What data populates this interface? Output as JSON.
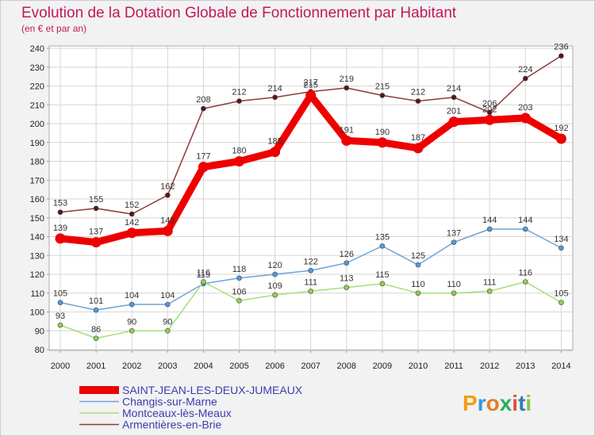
{
  "chart_data": {
    "type": "line",
    "title": "Evolution de la Dotation Globale de Fonctionnement par Habitant",
    "subtitle": "(en € et par an)",
    "xlabel": "",
    "ylabel": "",
    "ylim": [
      80,
      240
    ],
    "y_ticks": [
      80,
      90,
      100,
      110,
      120,
      130,
      140,
      150,
      160,
      170,
      180,
      190,
      200,
      210,
      220,
      230,
      240
    ],
    "grid": true,
    "categories": [
      "2000",
      "2001",
      "2002",
      "2003",
      "2004",
      "2005",
      "2006",
      "2007",
      "2008",
      "2009",
      "2010",
      "2011",
      "2012",
      "2013",
      "2014"
    ],
    "series": [
      {
        "name": "SAINT-JEAN-LES-DEUX-JUMEAUX",
        "color": "#ee0000",
        "marker": "#ee0000",
        "emphasis": true,
        "values": [
          139,
          137,
          142,
          143,
          177,
          180,
          185,
          215,
          191,
          190,
          187,
          201,
          202,
          203,
          192
        ]
      },
      {
        "name": "Changis-sur-Marne",
        "color": "#6ea3d6",
        "marker": "#4f9be0",
        "values": [
          105,
          101,
          104,
          104,
          115,
          118,
          120,
          122,
          126,
          135,
          125,
          137,
          144,
          144,
          134
        ]
      },
      {
        "name": "Montceaux-lès-Meaux",
        "color": "#a6de7a",
        "marker": "#8fd14f",
        "values": [
          93,
          86,
          90,
          90,
          116,
          106,
          109,
          111,
          113,
          115,
          110,
          110,
          111,
          116,
          105
        ]
      },
      {
        "name": "Armentières-en-Brie",
        "color": "#8b3a3a",
        "marker": "#5c1515",
        "values": [
          153,
          155,
          152,
          162,
          208,
          212,
          214,
          217,
          219,
          215,
          212,
          214,
          206,
          224,
          236
        ]
      }
    ]
  },
  "watermark": {
    "letters": [
      "P",
      "r",
      "o",
      "x",
      "i",
      "t",
      "i"
    ],
    "colors": [
      "#f39c12",
      "#3498db",
      "#e67e22",
      "#27ae60",
      "#e74c3c",
      "#2980b9",
      "#8bc34a"
    ]
  }
}
